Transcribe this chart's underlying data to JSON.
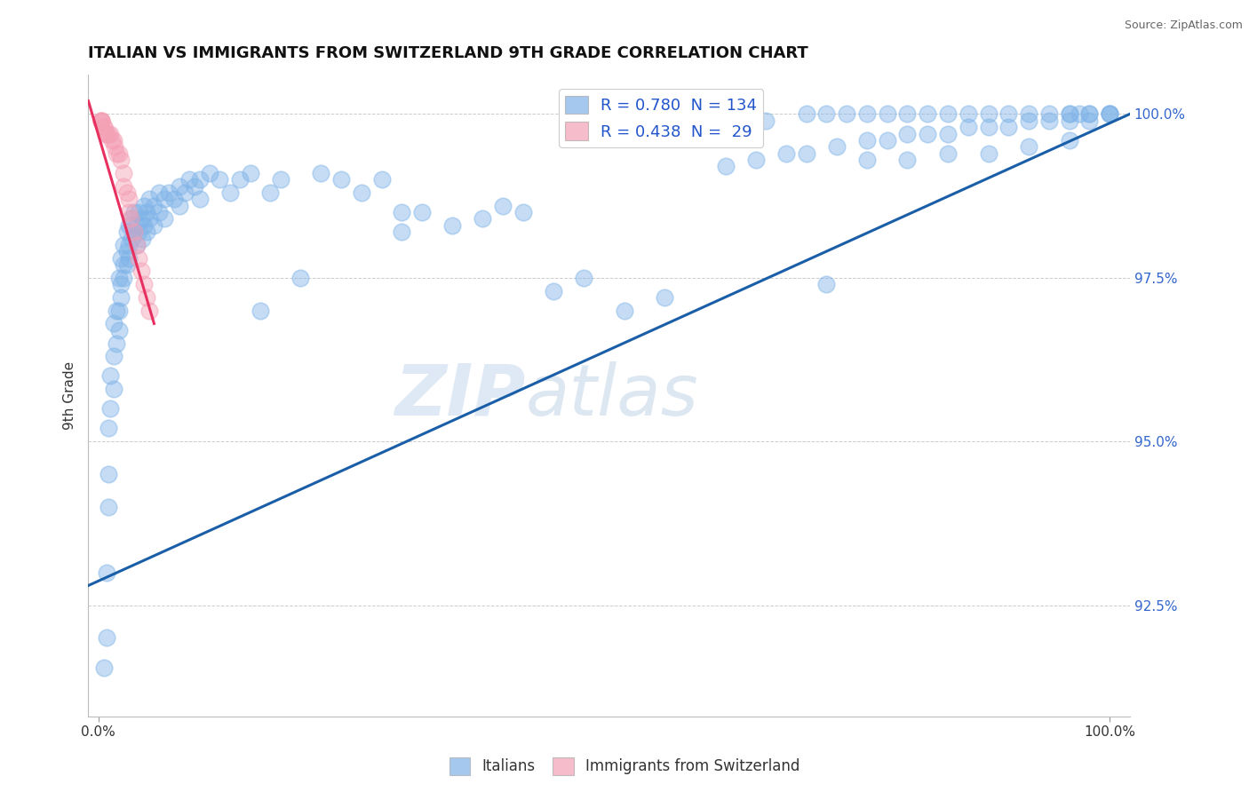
{
  "title": "ITALIAN VS IMMIGRANTS FROM SWITZERLAND 9TH GRADE CORRELATION CHART",
  "source": "Source: ZipAtlas.com",
  "ylabel": "9th Grade",
  "watermark_zip": "ZIP",
  "watermark_atlas": "atlas",
  "xlim": [
    -0.01,
    1.02
  ],
  "ylim": [
    0.908,
    1.006
  ],
  "y_ticks": [
    0.925,
    0.95,
    0.975,
    1.0
  ],
  "y_tick_labels": [
    "92.5%",
    "95.0%",
    "97.5%",
    "100.0%"
  ],
  "x_ticks": [
    0.0,
    1.0
  ],
  "x_tick_labels": [
    "0.0%",
    "100.0%"
  ],
  "legend_blue_R": "0.780",
  "legend_blue_N": "134",
  "legend_pink_R": "0.438",
  "legend_pink_N": " 29",
  "blue_color": "#7fb3e8",
  "pink_color": "#f4a0b5",
  "trendline_blue": "#1a5ea8",
  "trendline_pink": "#e83060",
  "blue_scatter": [
    [
      0.005,
      0.9155
    ],
    [
      0.008,
      0.93
    ],
    [
      0.008,
      0.92
    ],
    [
      0.01,
      0.952
    ],
    [
      0.01,
      0.945
    ],
    [
      0.01,
      0.94
    ],
    [
      0.012,
      0.96
    ],
    [
      0.012,
      0.955
    ],
    [
      0.015,
      0.968
    ],
    [
      0.015,
      0.963
    ],
    [
      0.015,
      0.958
    ],
    [
      0.018,
      0.97
    ],
    [
      0.018,
      0.965
    ],
    [
      0.02,
      0.975
    ],
    [
      0.02,
      0.97
    ],
    [
      0.02,
      0.967
    ],
    [
      0.022,
      0.978
    ],
    [
      0.022,
      0.974
    ],
    [
      0.022,
      0.972
    ],
    [
      0.025,
      0.98
    ],
    [
      0.025,
      0.977
    ],
    [
      0.025,
      0.975
    ],
    [
      0.028,
      0.982
    ],
    [
      0.028,
      0.979
    ],
    [
      0.028,
      0.977
    ],
    [
      0.03,
      0.983
    ],
    [
      0.03,
      0.98
    ],
    [
      0.03,
      0.978
    ],
    [
      0.033,
      0.984
    ],
    [
      0.033,
      0.981
    ],
    [
      0.035,
      0.985
    ],
    [
      0.035,
      0.982
    ],
    [
      0.038,
      0.983
    ],
    [
      0.038,
      0.98
    ],
    [
      0.04,
      0.985
    ],
    [
      0.04,
      0.982
    ],
    [
      0.043,
      0.984
    ],
    [
      0.043,
      0.981
    ],
    [
      0.045,
      0.986
    ],
    [
      0.045,
      0.983
    ],
    [
      0.048,
      0.985
    ],
    [
      0.048,
      0.982
    ],
    [
      0.05,
      0.987
    ],
    [
      0.05,
      0.984
    ],
    [
      0.055,
      0.986
    ],
    [
      0.055,
      0.983
    ],
    [
      0.06,
      0.988
    ],
    [
      0.06,
      0.985
    ],
    [
      0.065,
      0.987
    ],
    [
      0.065,
      0.984
    ],
    [
      0.07,
      0.988
    ],
    [
      0.075,
      0.987
    ],
    [
      0.08,
      0.989
    ],
    [
      0.08,
      0.986
    ],
    [
      0.085,
      0.988
    ],
    [
      0.09,
      0.99
    ],
    [
      0.095,
      0.989
    ],
    [
      0.1,
      0.99
    ],
    [
      0.1,
      0.987
    ],
    [
      0.11,
      0.991
    ],
    [
      0.12,
      0.99
    ],
    [
      0.13,
      0.988
    ],
    [
      0.14,
      0.99
    ],
    [
      0.15,
      0.991
    ],
    [
      0.16,
      0.97
    ],
    [
      0.17,
      0.988
    ],
    [
      0.18,
      0.99
    ],
    [
      0.2,
      0.975
    ],
    [
      0.22,
      0.991
    ],
    [
      0.24,
      0.99
    ],
    [
      0.26,
      0.988
    ],
    [
      0.28,
      0.99
    ],
    [
      0.3,
      0.985
    ],
    [
      0.3,
      0.982
    ],
    [
      0.32,
      0.985
    ],
    [
      0.35,
      0.983
    ],
    [
      0.38,
      0.984
    ],
    [
      0.4,
      0.986
    ],
    [
      0.42,
      0.985
    ],
    [
      0.45,
      0.973
    ],
    [
      0.48,
      0.975
    ],
    [
      0.52,
      0.97
    ],
    [
      0.56,
      0.972
    ],
    [
      0.72,
      0.974
    ],
    [
      0.76,
      0.993
    ],
    [
      0.8,
      0.993
    ],
    [
      0.84,
      0.994
    ],
    [
      0.88,
      0.994
    ],
    [
      0.92,
      0.995
    ],
    [
      0.96,
      0.996
    ],
    [
      0.62,
      0.992
    ],
    [
      0.65,
      0.993
    ],
    [
      0.68,
      0.994
    ],
    [
      0.7,
      0.994
    ],
    [
      0.73,
      0.995
    ],
    [
      0.76,
      0.996
    ],
    [
      0.78,
      0.996
    ],
    [
      0.8,
      0.997
    ],
    [
      0.82,
      0.997
    ],
    [
      0.84,
      0.997
    ],
    [
      0.86,
      0.998
    ],
    [
      0.88,
      0.998
    ],
    [
      0.9,
      0.998
    ],
    [
      0.92,
      0.999
    ],
    [
      0.94,
      0.999
    ],
    [
      0.96,
      0.999
    ],
    [
      0.98,
      0.999
    ],
    [
      1.0,
      1.0
    ],
    [
      0.96,
      1.0
    ],
    [
      0.97,
      1.0
    ],
    [
      0.98,
      1.0
    ],
    [
      1.0,
      1.0
    ],
    [
      0.6,
      0.998
    ],
    [
      0.62,
      0.999
    ],
    [
      0.64,
      0.999
    ],
    [
      0.66,
      0.999
    ],
    [
      0.7,
      1.0
    ],
    [
      0.72,
      1.0
    ],
    [
      0.74,
      1.0
    ],
    [
      0.76,
      1.0
    ],
    [
      0.78,
      1.0
    ],
    [
      0.8,
      1.0
    ],
    [
      0.82,
      1.0
    ],
    [
      0.84,
      1.0
    ],
    [
      0.86,
      1.0
    ],
    [
      0.88,
      1.0
    ],
    [
      0.9,
      1.0
    ],
    [
      0.92,
      1.0
    ],
    [
      0.94,
      1.0
    ],
    [
      0.96,
      1.0
    ],
    [
      0.98,
      1.0
    ],
    [
      1.0,
      1.0
    ]
  ],
  "pink_scatter": [
    [
      0.003,
      0.999
    ],
    [
      0.003,
      0.999
    ],
    [
      0.003,
      0.999
    ],
    [
      0.003,
      0.999
    ],
    [
      0.005,
      0.998
    ],
    [
      0.005,
      0.998
    ],
    [
      0.007,
      0.997
    ],
    [
      0.008,
      0.997
    ],
    [
      0.01,
      0.997
    ],
    [
      0.012,
      0.997
    ],
    [
      0.013,
      0.996
    ],
    [
      0.015,
      0.996
    ],
    [
      0.016,
      0.995
    ],
    [
      0.018,
      0.994
    ],
    [
      0.02,
      0.994
    ],
    [
      0.022,
      0.993
    ],
    [
      0.025,
      0.991
    ],
    [
      0.025,
      0.989
    ],
    [
      0.028,
      0.988
    ],
    [
      0.03,
      0.987
    ],
    [
      0.03,
      0.985
    ],
    [
      0.032,
      0.984
    ],
    [
      0.035,
      0.982
    ],
    [
      0.038,
      0.98
    ],
    [
      0.04,
      0.978
    ],
    [
      0.042,
      0.976
    ],
    [
      0.045,
      0.974
    ],
    [
      0.048,
      0.972
    ],
    [
      0.05,
      0.97
    ]
  ],
  "blue_trend_x": [
    -0.01,
    1.02
  ],
  "blue_trend_y": [
    0.928,
    1.0
  ],
  "pink_trend_x": [
    -0.01,
    0.055
  ],
  "pink_trend_y": [
    1.002,
    0.968
  ],
  "background_color": "#ffffff",
  "grid_color": "#cccccc"
}
